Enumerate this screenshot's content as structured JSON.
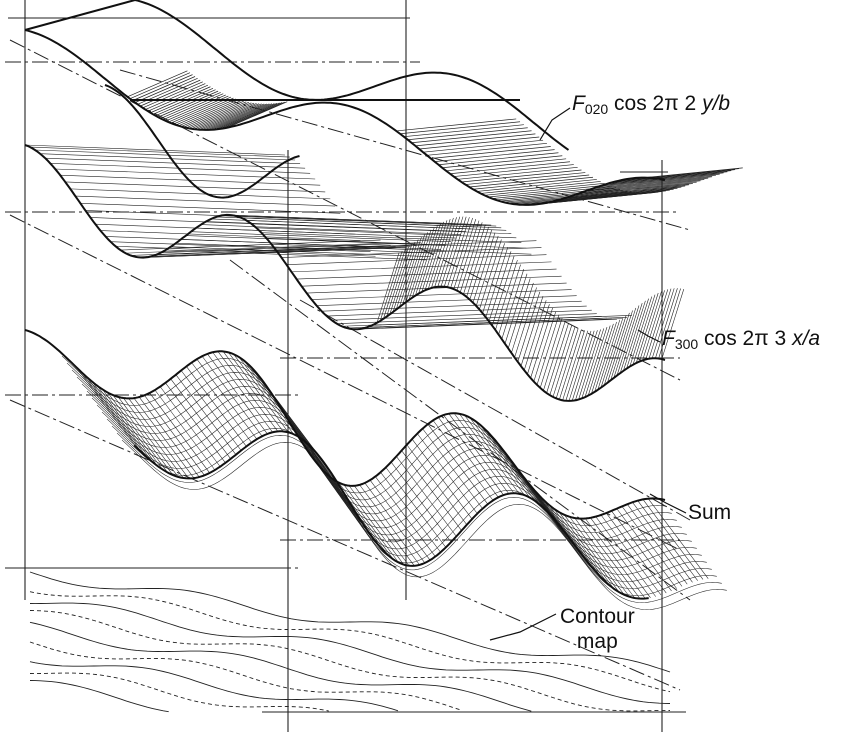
{
  "labels": {
    "f020": {
      "symbol": "F",
      "index": "020",
      "expr": " cos 2π 2 ",
      "var": "y/b"
    },
    "f300": {
      "symbol": "F",
      "index": "300",
      "expr": " cos 2π 3 ",
      "var": "x/a"
    },
    "sum": "Sum",
    "contour_line1": "Contour",
    "contour_line2": "map"
  }
}
